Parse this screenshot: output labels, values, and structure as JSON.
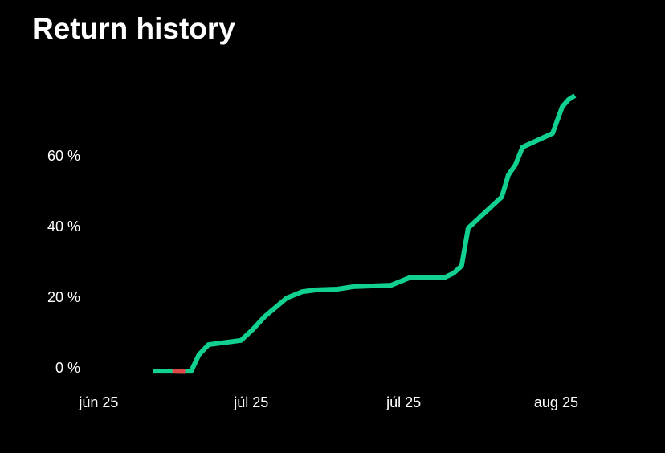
{
  "chart_data": {
    "type": "line",
    "title": "Return history",
    "xlim": [
      -15,
      110
    ],
    "xticks": [
      {
        "value": 0,
        "label": "jún 25"
      },
      {
        "value": 30,
        "label": "júl 25"
      },
      {
        "value": 60,
        "label": "júl 25"
      },
      {
        "value": 90,
        "label": "aug 25"
      }
    ],
    "ylim": [
      -2.5,
      81.6
    ],
    "yticks": [
      {
        "value": 0,
        "label": "0 %"
      },
      {
        "value": 20,
        "label": "20 %"
      },
      {
        "value": 40,
        "label": "40 %"
      },
      {
        "value": 60,
        "label": "60 %"
      }
    ],
    "series": [
      {
        "color": "#12d18e",
        "x": [
          10.6,
          14.5,
          18.2,
          19.7,
          21.6,
          28.0,
          30.3,
          32.7,
          37.0,
          40.1,
          42.9,
          46.9,
          50.1,
          57.5,
          61.1,
          68.2,
          69.8,
          71.4,
          72.7,
          79.3,
          80.6,
          82.0,
          83.4,
          89.3,
          91.2,
          92.4,
          93.7
        ],
        "values": [
          -0.7,
          -0.7,
          -0.7,
          3.9,
          6.8,
          8.0,
          11.1,
          14.8,
          20.0,
          21.8,
          22.3,
          22.5,
          23.2,
          23.6,
          25.7,
          25.9,
          27.0,
          29.1,
          39.8,
          48.6,
          54.8,
          57.7,
          62.7,
          66.6,
          74.1,
          76.1,
          77.3
        ]
      },
      {
        "color": "#e04848",
        "x": [
          14.5,
          17.0
        ],
        "values": [
          -0.7,
          -0.8
        ]
      }
    ]
  }
}
